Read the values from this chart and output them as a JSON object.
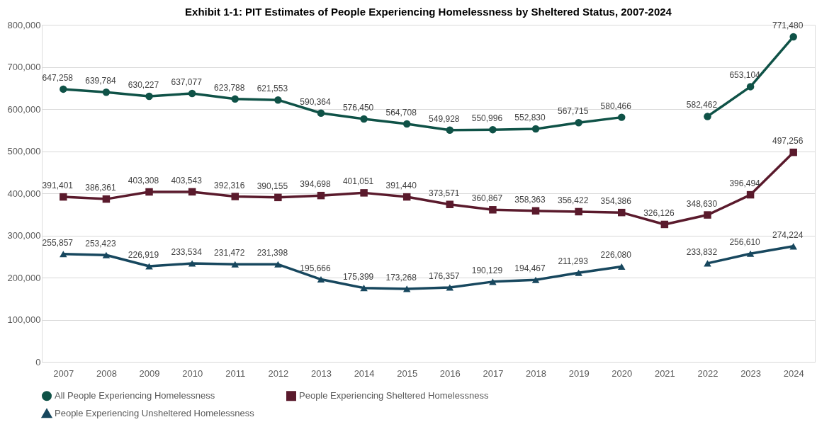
{
  "chart_data": {
    "type": "line",
    "title": "Exhibit 1-1: PIT Estimates of People Experiencing Homelessness by Sheltered Status, 2007-2024",
    "categories": [
      "2007",
      "2008",
      "2009",
      "2010",
      "2011",
      "2012",
      "2013",
      "2014",
      "2015",
      "2016",
      "2017",
      "2018",
      "2019",
      "2020",
      "2021",
      "2022",
      "2023",
      "2024"
    ],
    "series": [
      {
        "name": "All People Experiencing Homelessness",
        "color": "#0f5247",
        "marker": "circle",
        "value_labels": [
          "647,258",
          "639,784",
          "630,227",
          "637,077",
          "623,788",
          "621,553",
          "590,364",
          "576,450",
          "564,708",
          "549,928",
          "550,996",
          "552,830",
          "567,715",
          "580,466",
          null,
          "582,462",
          "653,104",
          "771,480"
        ],
        "values": [
          647258,
          639784,
          630227,
          637077,
          623788,
          621553,
          590364,
          576450,
          564708,
          549928,
          550996,
          552830,
          567715,
          580466,
          null,
          582462,
          653104,
          771480
        ]
      },
      {
        "name": "People Experiencing Sheltered Homelessness",
        "color": "#5a1a2c",
        "marker": "square",
        "value_labels": [
          "391,401",
          "386,361",
          "403,308",
          "403,543",
          "392,316",
          "390,155",
          "394,698",
          "401,051",
          "391,440",
          "373,571",
          "360,867",
          "358,363",
          "356,422",
          "354,386",
          "326,126",
          "348,630",
          "396,494",
          "497,256"
        ],
        "values": [
          391401,
          386361,
          403308,
          403543,
          392316,
          390155,
          394698,
          401051,
          391440,
          373571,
          360867,
          358363,
          356422,
          354386,
          326126,
          348630,
          396494,
          497256
        ]
      },
      {
        "name": "People Experiencing Unsheltered Homelessness",
        "color": "#17475e",
        "marker": "triangle",
        "value_labels": [
          "255,857",
          "253,423",
          "226,919",
          "233,534",
          "231,472",
          "231,398",
          "195,666",
          "175,399",
          "173,268",
          "176,357",
          "190,129",
          "194,467",
          "211,293",
          "226,080",
          null,
          "233,832",
          "256,610",
          "274,224"
        ],
        "values": [
          255857,
          253423,
          226919,
          233534,
          231472,
          231398,
          195666,
          175399,
          173268,
          176357,
          190129,
          194467,
          211293,
          226080,
          null,
          233832,
          256610,
          274224
        ]
      }
    ],
    "ylim": [
      0,
      800000
    ],
    "yticks": [
      0,
      {
        "value": 100000,
        "label": "100,000"
      },
      {
        "value": 200000,
        "label": "200,000"
      },
      {
        "value": 300000,
        "label": "300,000"
      },
      {
        "value": 400000,
        "label": "400,000"
      },
      {
        "value": 500000,
        "label": "500,000"
      },
      {
        "value": 600000,
        "label": "600,000"
      },
      {
        "value": 700000,
        "label": "700,000"
      },
      {
        "value": 800000,
        "label": "800,000"
      }
    ],
    "grid": "y",
    "legend": "bottom",
    "line_style": "solid"
  }
}
